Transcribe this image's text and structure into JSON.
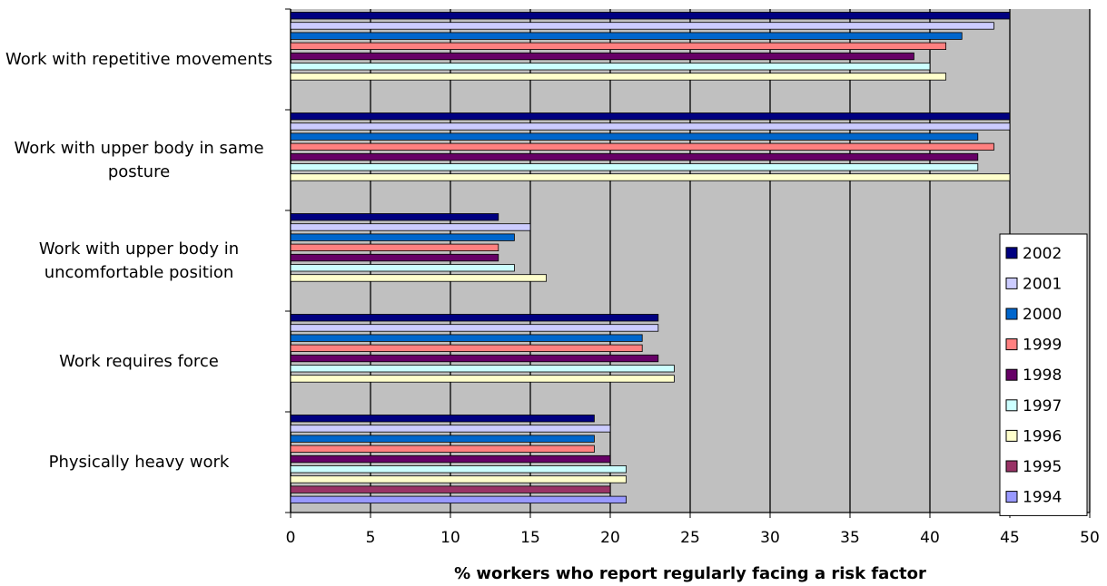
{
  "chart_data": {
    "type": "hbar",
    "x_label": "% workers who report regularly facing a risk factor",
    "categories": [
      "Work with repetitive movements",
      "Work with upper body in same posture",
      "Work with upper body in uncomfortable position",
      "Work requires force",
      "Physically heavy work"
    ],
    "series": [
      {
        "name": "2002",
        "color": "#000080",
        "values": [
          45,
          45,
          13,
          23,
          19
        ]
      },
      {
        "name": "2001",
        "color": "#ccccff",
        "values": [
          44,
          45,
          15,
          23,
          20
        ]
      },
      {
        "name": "2000",
        "color": "#0066cc",
        "values": [
          42,
          43,
          14,
          22,
          19
        ]
      },
      {
        "name": "1999",
        "color": "#ff8080",
        "values": [
          41,
          44,
          13,
          22,
          19
        ]
      },
      {
        "name": "1998",
        "color": "#660066",
        "values": [
          39,
          43,
          13,
          23,
          20
        ]
      },
      {
        "name": "1997",
        "color": "#ccffff",
        "values": [
          40,
          43,
          14,
          24,
          21
        ]
      },
      {
        "name": "1996",
        "color": "#ffffcc",
        "values": [
          41,
          45,
          16,
          24,
          21
        ]
      },
      {
        "name": "1995",
        "color": "#993366",
        "values": [
          null,
          null,
          null,
          null,
          20
        ]
      },
      {
        "name": "1994",
        "color": "#9999ff",
        "values": [
          null,
          null,
          null,
          null,
          21
        ]
      }
    ],
    "xlim": [
      0,
      50
    ],
    "xticks": [
      0,
      5,
      10,
      15,
      20,
      25,
      30,
      35,
      40,
      45,
      50
    ],
    "grid": true,
    "legend": "lower right"
  }
}
